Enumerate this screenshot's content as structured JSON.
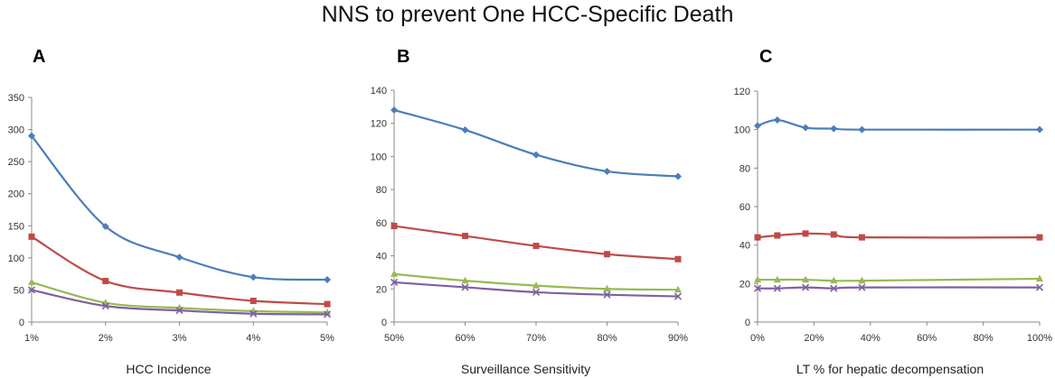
{
  "title": "NNS to prevent  One HCC-Specific Death",
  "colors": {
    "blue": "#4a7ebb",
    "red": "#be4b48",
    "green": "#98b954",
    "purple": "#7d60a0"
  },
  "chart_data": [
    {
      "type": "line",
      "panel": "A",
      "xlabel": "HCC Incidence",
      "x": [
        "1%",
        "2%",
        "3%",
        "4%",
        "5%"
      ],
      "ylim": [
        0,
        350
      ],
      "yticks": [
        0,
        50,
        100,
        150,
        200,
        250,
        300,
        350
      ],
      "series": [
        {
          "values": [
            290,
            149,
            101,
            70,
            66
          ],
          "marker": "diamond",
          "color": "#4a7ebb"
        },
        {
          "values": [
            133,
            64,
            46,
            33,
            28
          ],
          "marker": "square",
          "color": "#be4b48"
        },
        {
          "values": [
            62,
            30,
            22,
            17,
            15
          ],
          "marker": "triangle",
          "color": "#98b954"
        },
        {
          "values": [
            50,
            25,
            18,
            13,
            12
          ],
          "marker": "x",
          "color": "#7d60a0"
        }
      ]
    },
    {
      "type": "line",
      "panel": "B",
      "xlabel": "Surveillance Sensitivity",
      "x": [
        "50%",
        "60%",
        "70%",
        "80%",
        "90%"
      ],
      "ylim": [
        0,
        140
      ],
      "yticks": [
        0,
        20,
        40,
        60,
        80,
        100,
        120,
        140
      ],
      "series": [
        {
          "values": [
            128,
            116,
            101,
            91,
            88
          ],
          "marker": "diamond",
          "color": "#4a7ebb"
        },
        {
          "values": [
            58,
            52,
            46,
            41,
            38
          ],
          "marker": "square",
          "color": "#be4b48"
        },
        {
          "values": [
            29,
            25,
            22,
            20,
            19.5
          ],
          "marker": "triangle",
          "color": "#98b954"
        },
        {
          "values": [
            24,
            21,
            18,
            16.5,
            15.5
          ],
          "marker": "x",
          "color": "#7d60a0"
        }
      ]
    },
    {
      "type": "line",
      "panel": "C",
      "xlabel": "LT % for hepatic decompensation",
      "xnumeric": true,
      "xlim": [
        0,
        100
      ],
      "xticks": [
        0,
        20,
        40,
        60,
        80,
        100
      ],
      "xtick_labels": [
        "0%",
        "20%",
        "40%",
        "60%",
        "80%",
        "100%"
      ],
      "x": [
        0,
        7,
        17,
        27,
        37,
        100
      ],
      "ylim": [
        0,
        120
      ],
      "yticks": [
        0,
        20,
        40,
        60,
        80,
        100,
        120
      ],
      "series": [
        {
          "values": [
            102,
            105,
            101,
            100.5,
            100,
            100
          ],
          "marker": "diamond",
          "color": "#4a7ebb"
        },
        {
          "values": [
            44,
            45,
            46,
            45.5,
            44,
            44
          ],
          "marker": "square",
          "color": "#be4b48"
        },
        {
          "values": [
            22,
            22,
            22,
            21.5,
            21.5,
            22.5
          ],
          "marker": "triangle",
          "color": "#98b954"
        },
        {
          "values": [
            17.5,
            17.5,
            18,
            17.5,
            18,
            18
          ],
          "marker": "x",
          "color": "#7d60a0"
        }
      ]
    }
  ]
}
